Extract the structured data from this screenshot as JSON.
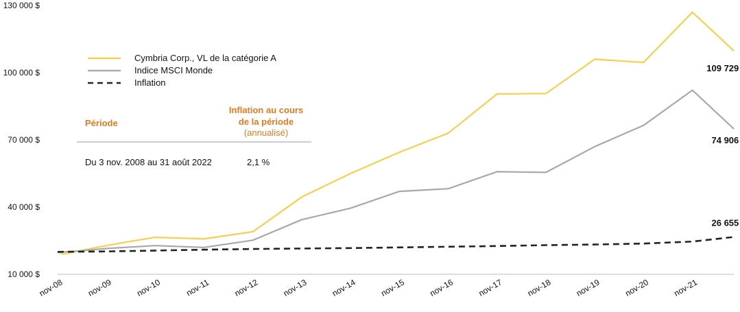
{
  "chart_data": {
    "type": "line",
    "title": "",
    "xlabel": "",
    "ylabel": "",
    "ylim": [
      10000,
      130000
    ],
    "yticks": [
      10000,
      40000,
      70000,
      100000,
      130000
    ],
    "ytick_labels": [
      "10 000 $",
      "40 000 $",
      "70 000 $",
      "100 000 $",
      "130 000 $"
    ],
    "categories": [
      "nov-08",
      "nov-09",
      "nov-10",
      "nov-11",
      "nov-12",
      "nov-13",
      "nov-14",
      "nov-15",
      "nov-16",
      "nov-17",
      "nov-18",
      "nov-19",
      "nov-20",
      "nov-21"
    ],
    "x_end": 13.85,
    "grid": false,
    "legend_position": "top-left",
    "series": [
      {
        "name": "Cymbria Corp., VL de la catégorie A",
        "color": "#f5cf4f",
        "style": "solid",
        "x": [
          0,
          0.12,
          0.8,
          1.3,
          2.0,
          3.0,
          4.0,
          5.0,
          6.0,
          7.0,
          8.0,
          9.0,
          10.0,
          11.0,
          12.0,
          13.0,
          13.85
        ],
        "values": [
          20000,
          19000,
          22000,
          24000,
          26500,
          25800,
          29000,
          44500,
          55000,
          64500,
          73000,
          90500,
          90700,
          106000,
          104600,
          127000,
          109729
        ],
        "end_label": "109 729 $"
      },
      {
        "name": "Indice MSCI Monde",
        "color": "#a8a8a8",
        "style": "solid",
        "x": [
          0,
          0.5,
          1.0,
          2.0,
          3.0,
          4.0,
          5.0,
          6.0,
          7.0,
          8.0,
          9.0,
          10.0,
          11.0,
          12.0,
          13.0,
          13.85
        ],
        "values": [
          19800,
          20500,
          21500,
          22800,
          22000,
          25200,
          34400,
          39500,
          47000,
          48200,
          55800,
          55500,
          67000,
          76500,
          92200,
          74906
        ],
        "end_label": "74 906 $"
      },
      {
        "name": "Inflation",
        "color": "#222222",
        "style": "dashed",
        "x": [
          0,
          1,
          2,
          3,
          4,
          5,
          6,
          7,
          8,
          9,
          10,
          11,
          12,
          13,
          13.85
        ],
        "values": [
          20000,
          20200,
          20600,
          21000,
          21300,
          21500,
          21700,
          22000,
          22300,
          22600,
          23000,
          23300,
          23700,
          24600,
          26655
        ],
        "end_label": "26 655 $"
      }
    ]
  },
  "table": {
    "header_period": "Période",
    "header_inflation_line1": "Inflation au cours",
    "header_inflation_line2": "de la période",
    "header_inflation_sub": "(annualisé)",
    "row_period": "Du 3 nov. 2008 au 31 août 2022",
    "row_value": "2,1 %",
    "header_color": "#e07a1f"
  }
}
